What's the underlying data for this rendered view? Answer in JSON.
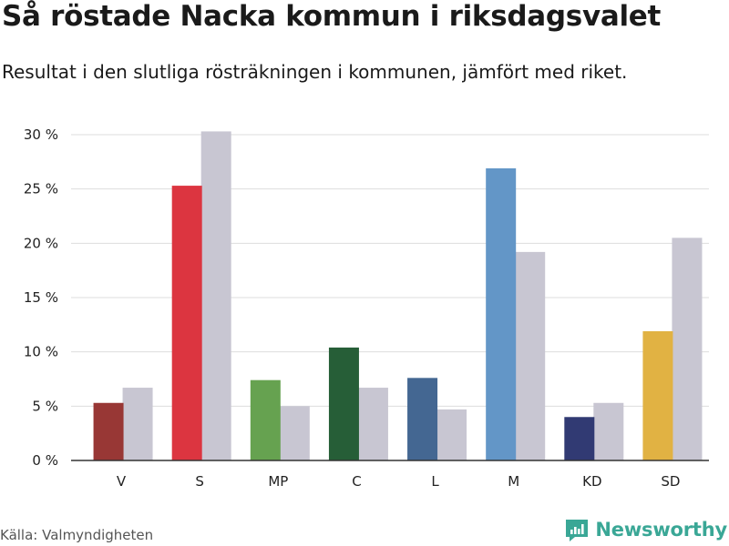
{
  "header": {
    "title": "Så röstade Nacka kommun i riksdagsvalet",
    "subtitle": "Resultat i den slutliga rösträkningen i kommunen, jämfört med riket."
  },
  "footer": {
    "source": "Källa: Valmyndigheten",
    "brand": "Newsworthy"
  },
  "colors": {
    "national": "#c8c6d2",
    "grid": "#dddddd",
    "axis": "#333333",
    "brand": "#3aa796"
  },
  "chart_data": {
    "type": "bar",
    "title": "Så röstade Nacka kommun i riksdagsvalet",
    "subtitle": "Resultat i den slutliga rösträkningen i kommunen, jämfört med riket.",
    "categories": [
      "V",
      "S",
      "MP",
      "C",
      "L",
      "M",
      "KD",
      "SD"
    ],
    "series": [
      {
        "key": "kommun",
        "values": [
          5.3,
          25.3,
          7.4,
          10.4,
          7.6,
          26.9,
          4.0,
          11.9
        ],
        "colors": [
          "#983735",
          "#dc3540",
          "#66a250",
          "#265e37",
          "#446792",
          "#6396c7",
          "#313a73",
          "#e1b243"
        ]
      },
      {
        "key": "riket",
        "values": [
          6.7,
          30.3,
          5.0,
          6.7,
          4.7,
          19.2,
          5.3,
          20.5
        ],
        "color": "#c8c6d2"
      }
    ],
    "ylim": [
      0,
      30
    ],
    "yticks": [
      0,
      5,
      10,
      15,
      20,
      25,
      30
    ],
    "ytick_labels": [
      "0 %",
      "5 %",
      "10 %",
      "15 %",
      "20 %",
      "25 %",
      "30 %"
    ],
    "grid": true,
    "legend": "none",
    "xlabel": "",
    "ylabel": ""
  }
}
